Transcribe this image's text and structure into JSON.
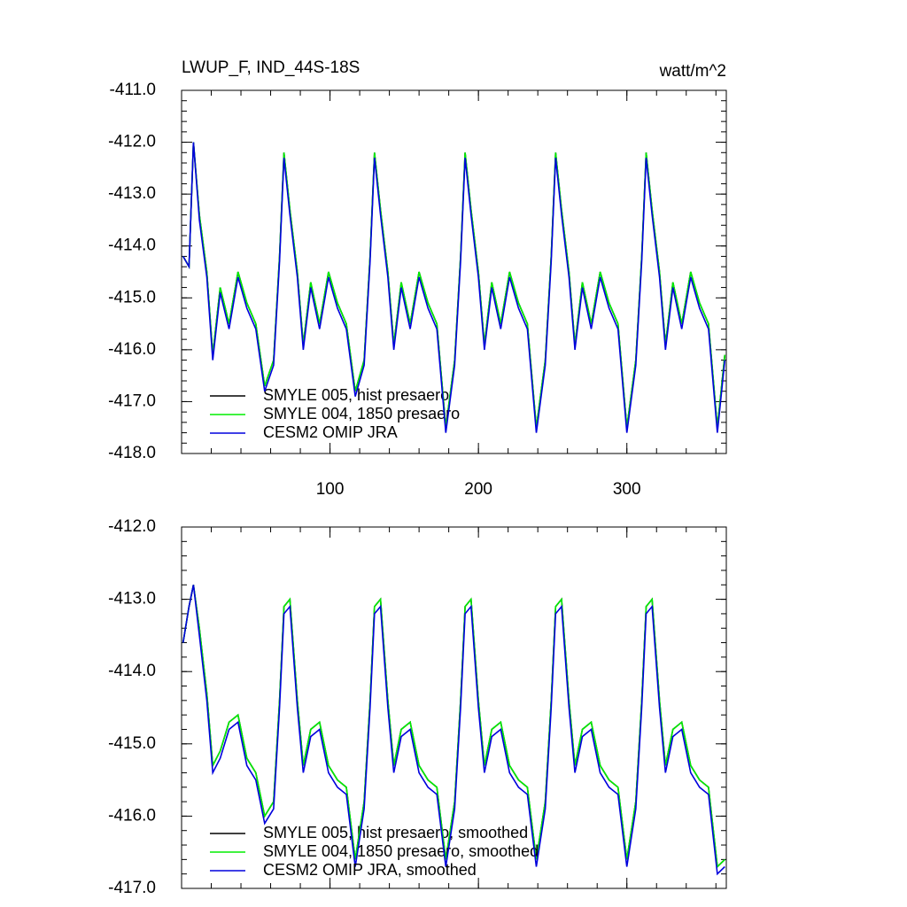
{
  "chart_data": [
    {
      "type": "line",
      "title": "LWUP_F, IND_44S-18S",
      "units": "watt/m^2",
      "x": [
        1,
        5,
        8,
        12,
        17,
        21,
        26,
        32,
        38,
        44,
        50,
        56,
        62,
        66,
        69,
        73,
        78,
        82,
        87,
        93,
        99,
        105,
        111,
        117,
        123,
        127,
        130,
        134,
        139,
        143,
        148,
        154,
        160,
        166,
        172,
        178,
        184,
        188,
        191,
        195,
        200,
        204,
        209,
        215,
        221,
        227,
        233,
        239,
        245,
        249,
        252,
        256,
        261,
        265,
        270,
        276,
        282,
        288,
        294,
        300,
        306,
        310,
        313,
        317,
        322,
        326,
        331,
        337,
        343,
        349,
        355,
        361,
        366
      ],
      "xlim": [
        0,
        367
      ],
      "xticks": [
        100,
        200,
        300
      ],
      "ylim": [
        -418,
        -411
      ],
      "yticks": [
        {
          "value": -411,
          "label": "-411.0"
        },
        {
          "value": -412,
          "label": "-412.0"
        },
        {
          "value": -413,
          "label": "-413.0"
        },
        {
          "value": -414,
          "label": "-414.0"
        },
        {
          "value": -415,
          "label": "-415.0"
        },
        {
          "value": -416,
          "label": "-416.0"
        },
        {
          "value": -417,
          "label": "-417.0"
        },
        {
          "value": -418,
          "label": "-418.0"
        }
      ],
      "series": [
        {
          "name": "SMYLE 005, hist presaero",
          "color": "#000000",
          "values": [
            -414.2,
            -414.4,
            -412.0,
            -413.4,
            -414.5,
            -416.1,
            -414.8,
            -415.5,
            -414.5,
            -415.1,
            -415.5,
            -416.7,
            -416.2,
            -414.2,
            -412.2,
            -413.3,
            -414.5,
            -415.9,
            -414.7,
            -415.5,
            -414.5,
            -415.1,
            -415.5,
            -416.8,
            -416.2,
            -414.2,
            -412.2,
            -413.3,
            -414.5,
            -415.9,
            -414.7,
            -415.5,
            -414.5,
            -415.1,
            -415.5,
            -417.5,
            -416.2,
            -414.2,
            -412.2,
            -413.3,
            -414.5,
            -415.9,
            -414.7,
            -415.5,
            -414.5,
            -415.1,
            -415.5,
            -417.5,
            -416.2,
            -414.2,
            -412.2,
            -413.3,
            -414.5,
            -415.9,
            -414.7,
            -415.5,
            -414.5,
            -415.1,
            -415.5,
            -417.5,
            -416.2,
            -414.2,
            -412.2,
            -413.3,
            -414.5,
            -415.9,
            -414.7,
            -415.5,
            -414.5,
            -415.1,
            -415.5,
            -417.5,
            -416.1
          ]
        },
        {
          "name": "SMYLE 004, 1850 presaero",
          "color": "#00ee00",
          "values": [
            -414.2,
            -414.4,
            -412.0,
            -413.4,
            -414.5,
            -416.1,
            -414.8,
            -415.5,
            -414.5,
            -415.1,
            -415.5,
            -416.7,
            -416.2,
            -414.2,
            -412.2,
            -413.3,
            -414.5,
            -415.9,
            -414.7,
            -415.5,
            -414.5,
            -415.1,
            -415.5,
            -416.8,
            -416.2,
            -414.2,
            -412.2,
            -413.3,
            -414.5,
            -415.9,
            -414.7,
            -415.5,
            -414.5,
            -415.1,
            -415.5,
            -417.5,
            -416.2,
            -414.2,
            -412.2,
            -413.3,
            -414.5,
            -415.9,
            -414.7,
            -415.5,
            -414.5,
            -415.1,
            -415.5,
            -417.5,
            -416.2,
            -414.2,
            -412.2,
            -413.3,
            -414.5,
            -415.9,
            -414.7,
            -415.5,
            -414.5,
            -415.1,
            -415.5,
            -417.5,
            -416.2,
            -414.2,
            -412.2,
            -413.3,
            -414.5,
            -415.9,
            -414.7,
            -415.5,
            -414.5,
            -415.1,
            -415.5,
            -417.5,
            -416.1
          ]
        },
        {
          "name": "CESM2 OMIP JRA",
          "color": "#0000dd",
          "values": [
            -414.2,
            -414.4,
            -412.0,
            -413.5,
            -414.6,
            -416.2,
            -414.9,
            -415.6,
            -414.6,
            -415.2,
            -415.6,
            -416.8,
            -416.3,
            -414.3,
            -412.3,
            -413.4,
            -414.6,
            -416.0,
            -414.8,
            -415.6,
            -414.6,
            -415.2,
            -415.6,
            -416.9,
            -416.3,
            -414.3,
            -412.3,
            -413.4,
            -414.6,
            -416.0,
            -414.8,
            -415.6,
            -414.6,
            -415.2,
            -415.6,
            -417.6,
            -416.3,
            -414.3,
            -412.3,
            -413.4,
            -414.6,
            -416.0,
            -414.8,
            -415.6,
            -414.6,
            -415.2,
            -415.6,
            -417.6,
            -416.3,
            -414.3,
            -412.3,
            -413.4,
            -414.6,
            -416.0,
            -414.8,
            -415.6,
            -414.6,
            -415.2,
            -415.6,
            -417.6,
            -416.3,
            -414.3,
            -412.3,
            -413.4,
            -414.6,
            -416.0,
            -414.8,
            -415.6,
            -414.6,
            -415.2,
            -415.6,
            -417.6,
            -416.2
          ]
        }
      ]
    },
    {
      "type": "line",
      "x": [
        1,
        5,
        8,
        12,
        17,
        21,
        26,
        32,
        38,
        44,
        50,
        56,
        62,
        66,
        69,
        73,
        78,
        82,
        87,
        93,
        99,
        105,
        111,
        117,
        123,
        127,
        130,
        134,
        139,
        143,
        148,
        154,
        160,
        166,
        172,
        178,
        184,
        188,
        191,
        195,
        200,
        204,
        209,
        215,
        221,
        227,
        233,
        239,
        245,
        249,
        252,
        256,
        261,
        265,
        270,
        276,
        282,
        288,
        294,
        300,
        306,
        310,
        313,
        317,
        322,
        326,
        331,
        337,
        343,
        349,
        355,
        361,
        366
      ],
      "xlim": [
        0,
        367
      ],
      "ylim": [
        -417,
        -412
      ],
      "yticks": [
        {
          "value": -412,
          "label": "-412.0"
        },
        {
          "value": -413,
          "label": "-413.0"
        },
        {
          "value": -414,
          "label": "-414.0"
        },
        {
          "value": -415,
          "label": "-415.0"
        },
        {
          "value": -416,
          "label": "-416.0"
        },
        {
          "value": -417,
          "label": "-417.0"
        }
      ],
      "series": [
        {
          "name": "SMYLE 005, hist presaero, smoothed",
          "color": "#000000",
          "values": [
            -413.6,
            -413.1,
            -412.8,
            -413.4,
            -414.3,
            -415.3,
            -415.1,
            -414.7,
            -414.6,
            -415.2,
            -415.4,
            -416.0,
            -415.8,
            -414.4,
            -413.1,
            -413.0,
            -414.4,
            -415.3,
            -414.8,
            -414.7,
            -415.3,
            -415.5,
            -415.6,
            -416.6,
            -415.8,
            -414.4,
            -413.1,
            -413.0,
            -414.4,
            -415.3,
            -414.8,
            -414.7,
            -415.3,
            -415.5,
            -415.6,
            -416.6,
            -415.8,
            -414.4,
            -413.1,
            -413.0,
            -414.4,
            -415.3,
            -414.8,
            -414.7,
            -415.3,
            -415.5,
            -415.6,
            -416.6,
            -415.8,
            -414.4,
            -413.1,
            -413.0,
            -414.4,
            -415.3,
            -414.8,
            -414.7,
            -415.3,
            -415.5,
            -415.6,
            -416.6,
            -415.8,
            -414.4,
            -413.1,
            -413.0,
            -414.4,
            -415.3,
            -414.8,
            -414.7,
            -415.3,
            -415.5,
            -415.6,
            -416.7,
            -416.6
          ]
        },
        {
          "name": "SMYLE 004, 1850 presaero, smoothed",
          "color": "#00ee00",
          "values": [
            -413.6,
            -413.1,
            -412.8,
            -413.4,
            -414.3,
            -415.3,
            -415.1,
            -414.7,
            -414.6,
            -415.2,
            -415.4,
            -416.0,
            -415.8,
            -414.4,
            -413.1,
            -413.0,
            -414.4,
            -415.3,
            -414.8,
            -414.7,
            -415.3,
            -415.5,
            -415.6,
            -416.6,
            -415.8,
            -414.4,
            -413.1,
            -413.0,
            -414.4,
            -415.3,
            -414.8,
            -414.7,
            -415.3,
            -415.5,
            -415.6,
            -416.6,
            -415.8,
            -414.4,
            -413.1,
            -413.0,
            -414.4,
            -415.3,
            -414.8,
            -414.7,
            -415.3,
            -415.5,
            -415.6,
            -416.6,
            -415.8,
            -414.4,
            -413.1,
            -413.0,
            -414.4,
            -415.3,
            -414.8,
            -414.7,
            -415.3,
            -415.5,
            -415.6,
            -416.6,
            -415.8,
            -414.4,
            -413.1,
            -413.0,
            -414.4,
            -415.3,
            -414.8,
            -414.7,
            -415.3,
            -415.5,
            -415.6,
            -416.7,
            -416.6
          ]
        },
        {
          "name": "CESM2 OMIP JRA, smoothed",
          "color": "#0000dd",
          "values": [
            -413.6,
            -413.1,
            -412.8,
            -413.5,
            -414.4,
            -415.4,
            -415.2,
            -414.8,
            -414.7,
            -415.3,
            -415.5,
            -416.1,
            -415.9,
            -414.5,
            -413.2,
            -413.1,
            -414.5,
            -415.4,
            -414.9,
            -414.8,
            -415.4,
            -415.6,
            -415.7,
            -416.7,
            -415.9,
            -414.5,
            -413.2,
            -413.1,
            -414.5,
            -415.4,
            -414.9,
            -414.8,
            -415.4,
            -415.6,
            -415.7,
            -416.7,
            -415.9,
            -414.5,
            -413.2,
            -413.1,
            -414.5,
            -415.4,
            -414.9,
            -414.8,
            -415.4,
            -415.6,
            -415.7,
            -416.7,
            -415.9,
            -414.5,
            -413.2,
            -413.1,
            -414.5,
            -415.4,
            -414.9,
            -414.8,
            -415.4,
            -415.6,
            -415.7,
            -416.7,
            -415.9,
            -414.5,
            -413.2,
            -413.1,
            -414.5,
            -415.4,
            -414.9,
            -414.8,
            -415.4,
            -415.6,
            -415.7,
            -416.8,
            -416.7
          ]
        }
      ]
    }
  ]
}
